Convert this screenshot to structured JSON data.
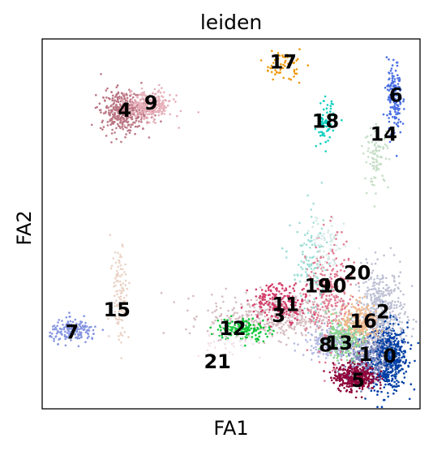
{
  "chart_data": {
    "type": "scatter",
    "title": "leiden",
    "xlabel": "FA1",
    "ylabel": "FA2",
    "xlim": [
      0,
      100
    ],
    "ylim": [
      0,
      100
    ],
    "grid": false,
    "legend": "on data",
    "clusters": [
      {
        "name": "0",
        "x": 91.4,
        "y": 14.2,
        "sx": 2.6,
        "sy": 4.5,
        "n": 650,
        "color": "#023fa5"
      },
      {
        "name": "1",
        "x": 85.0,
        "y": 14.4,
        "sx": 3.0,
        "sy": 3.4,
        "n": 300,
        "color": "#7d87b9"
      },
      {
        "name": "2",
        "x": 89.5,
        "y": 26.0,
        "sx": 3.2,
        "sy": 6.0,
        "n": 420,
        "color": "#bec1d4"
      },
      {
        "name": "3",
        "x": 62.0,
        "y": 25.0,
        "sx": 9.0,
        "sy": 3.0,
        "n": 450,
        "color": "#d6bcc0"
      },
      {
        "name": "4",
        "x": 21.5,
        "y": 80.5,
        "sx": 3.0,
        "sy": 2.8,
        "n": 380,
        "color": "#bb7784"
      },
      {
        "name": "5",
        "x": 82.8,
        "y": 8.6,
        "sx": 2.8,
        "sy": 1.8,
        "n": 380,
        "color": "#8e063b"
      },
      {
        "name": "6",
        "x": 93.2,
        "y": 84.0,
        "sx": 1.0,
        "sy": 5.0,
        "n": 160,
        "color": "#4a6fe3"
      },
      {
        "name": "7",
        "x": 8.5,
        "y": 21.0,
        "sx": 3.2,
        "sy": 1.5,
        "n": 160,
        "color": "#8595e1"
      },
      {
        "name": "8",
        "x": 76.5,
        "y": 18.0,
        "sx": 3.5,
        "sy": 2.0,
        "n": 200,
        "color": "#b5bbe3"
      },
      {
        "name": "9",
        "x": 28.5,
        "y": 82.0,
        "sx": 3.0,
        "sy": 2.0,
        "n": 260,
        "color": "#e6afb9"
      },
      {
        "name": "10",
        "x": 76.0,
        "y": 30.0,
        "sx": 3.0,
        "sy": 8.0,
        "n": 260,
        "color": "#e07b91"
      },
      {
        "name": "11",
        "x": 63.0,
        "y": 29.0,
        "sx": 4.0,
        "sy": 2.5,
        "n": 200,
        "color": "#d33f6a"
      },
      {
        "name": "12",
        "x": 53.0,
        "y": 21.5,
        "sx": 3.5,
        "sy": 1.5,
        "n": 160,
        "color": "#11c638"
      },
      {
        "name": "13",
        "x": 79.5,
        "y": 19.0,
        "sx": 3.0,
        "sy": 2.5,
        "n": 220,
        "color": "#8dd593"
      },
      {
        "name": "14",
        "x": 88.5,
        "y": 68.0,
        "sx": 1.6,
        "sy": 4.0,
        "n": 90,
        "color": "#c6dec7"
      },
      {
        "name": "15",
        "x": 20.5,
        "y": 32.0,
        "sx": 1.2,
        "sy": 7.0,
        "n": 110,
        "color": "#ead3c6"
      },
      {
        "name": "16",
        "x": 84.5,
        "y": 23.5,
        "sx": 2.5,
        "sy": 2.5,
        "n": 200,
        "color": "#f0b98d"
      },
      {
        "name": "17",
        "x": 63.5,
        "y": 93.0,
        "sx": 2.5,
        "sy": 2.0,
        "n": 60,
        "color": "#ef9708"
      },
      {
        "name": "18",
        "x": 75.0,
        "y": 77.0,
        "sx": 1.2,
        "sy": 3.0,
        "n": 70,
        "color": "#0fcfc0"
      },
      {
        "name": "19",
        "x": 71.0,
        "y": 38.0,
        "sx": 2.5,
        "sy": 7.0,
        "n": 100,
        "color": "#9cded6"
      },
      {
        "name": "20",
        "x": 75.0,
        "y": 43.0,
        "sx": 2.5,
        "sy": 5.0,
        "n": 80,
        "color": "#d5eae7"
      },
      {
        "name": "21",
        "x": 48.0,
        "y": 18.0,
        "sx": 4.0,
        "sy": 2.0,
        "n": 40,
        "color": "#f3e1eb"
      }
    ],
    "labels": [
      {
        "text": "17",
        "x": 63.8,
        "y": 93.5
      },
      {
        "text": "6",
        "x": 93.6,
        "y": 84.5
      },
      {
        "text": "4",
        "x": 21.8,
        "y": 80.5
      },
      {
        "text": "9",
        "x": 28.8,
        "y": 82.5
      },
      {
        "text": "18",
        "x": 75.0,
        "y": 77.5
      },
      {
        "text": "14",
        "x": 90.4,
        "y": 74.0
      },
      {
        "text": "20",
        "x": 83.4,
        "y": 36.5
      },
      {
        "text": "19",
        "x": 73.0,
        "y": 33.0
      },
      {
        "text": "10",
        "x": 77.0,
        "y": 33.0
      },
      {
        "text": "11",
        "x": 64.4,
        "y": 28.0
      },
      {
        "text": "3",
        "x": 62.6,
        "y": 25.0
      },
      {
        "text": "15",
        "x": 19.8,
        "y": 26.5
      },
      {
        "text": "16",
        "x": 85.0,
        "y": 23.5
      },
      {
        "text": "2",
        "x": 90.2,
        "y": 26.0
      },
      {
        "text": "7",
        "x": 7.9,
        "y": 20.5
      },
      {
        "text": "12",
        "x": 50.4,
        "y": 21.5
      },
      {
        "text": "8",
        "x": 75.0,
        "y": 17.0
      },
      {
        "text": "13",
        "x": 78.6,
        "y": 17.5
      },
      {
        "text": "1",
        "x": 85.6,
        "y": 14.5
      },
      {
        "text": "0",
        "x": 92.0,
        "y": 14.0
      },
      {
        "text": "21",
        "x": 46.4,
        "y": 12.5
      },
      {
        "text": "5",
        "x": 83.6,
        "y": 7.5
      }
    ]
  }
}
